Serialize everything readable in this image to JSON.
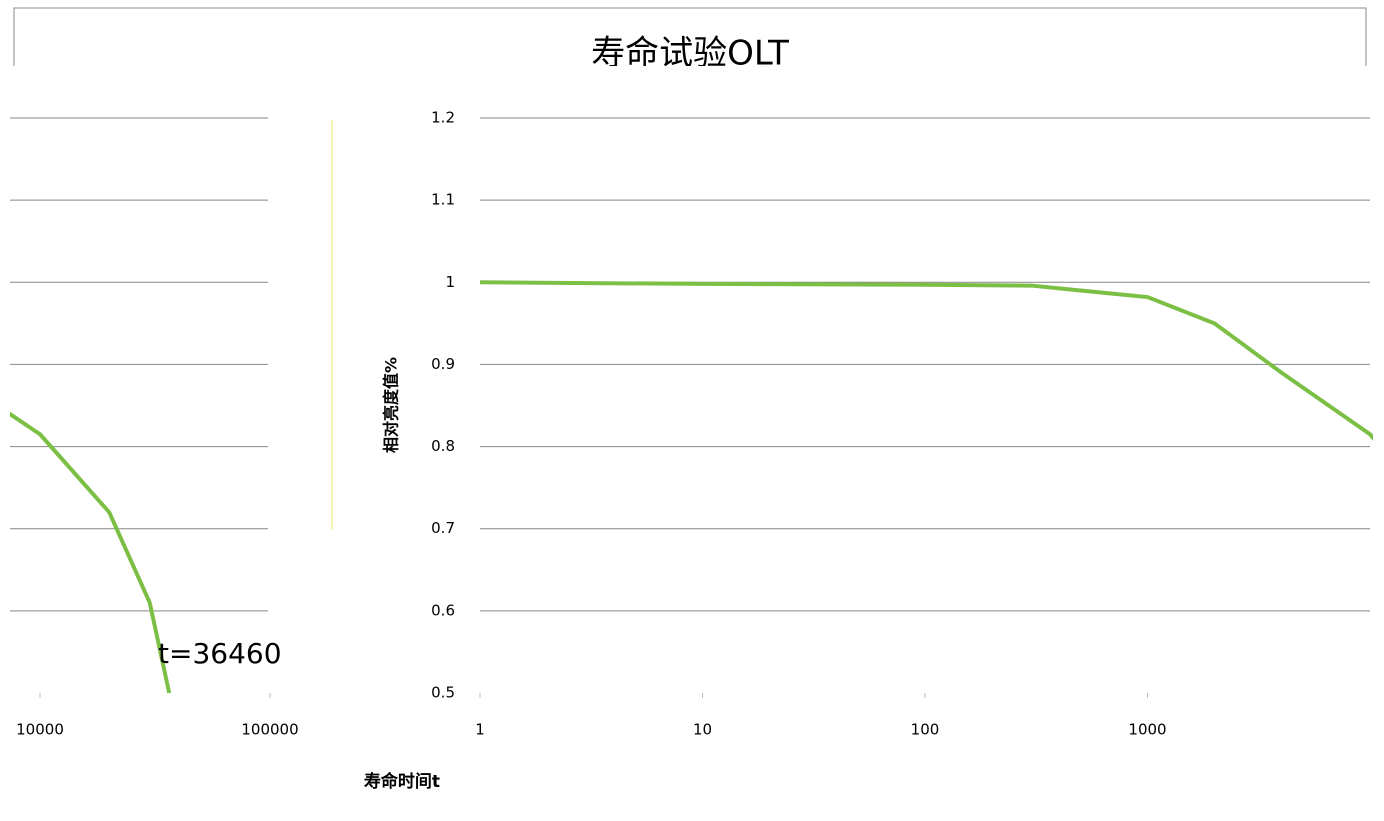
{
  "chart_data": {
    "type": "line",
    "title": "寿命试验OLT",
    "y_label": "相对亮度值%",
    "x_label": "寿命时间t",
    "annotation": "t=36460",
    "x": [
      1,
      10,
      100,
      300,
      500,
      1000,
      2000,
      4000,
      10000,
      20000,
      30000,
      36460
    ],
    "series": [
      {
        "name": "相对亮度",
        "color": "#7cbf45",
        "values": [
          1.0,
          0.998,
          0.997,
          0.996,
          0.99,
          0.982,
          0.95,
          0.89,
          0.815,
          0.72,
          0.61,
          0.5
        ]
      }
    ],
    "xlim": [
      1,
      100000
    ],
    "xscale": "log",
    "xticks": [
      1,
      10,
      100,
      1000,
      10000,
      100000
    ],
    "ylim": [
      0.5,
      1.2
    ],
    "yticks": [
      0.5,
      0.6,
      0.7,
      0.8,
      0.9,
      1,
      1.1,
      1.2
    ],
    "grid": true
  }
}
